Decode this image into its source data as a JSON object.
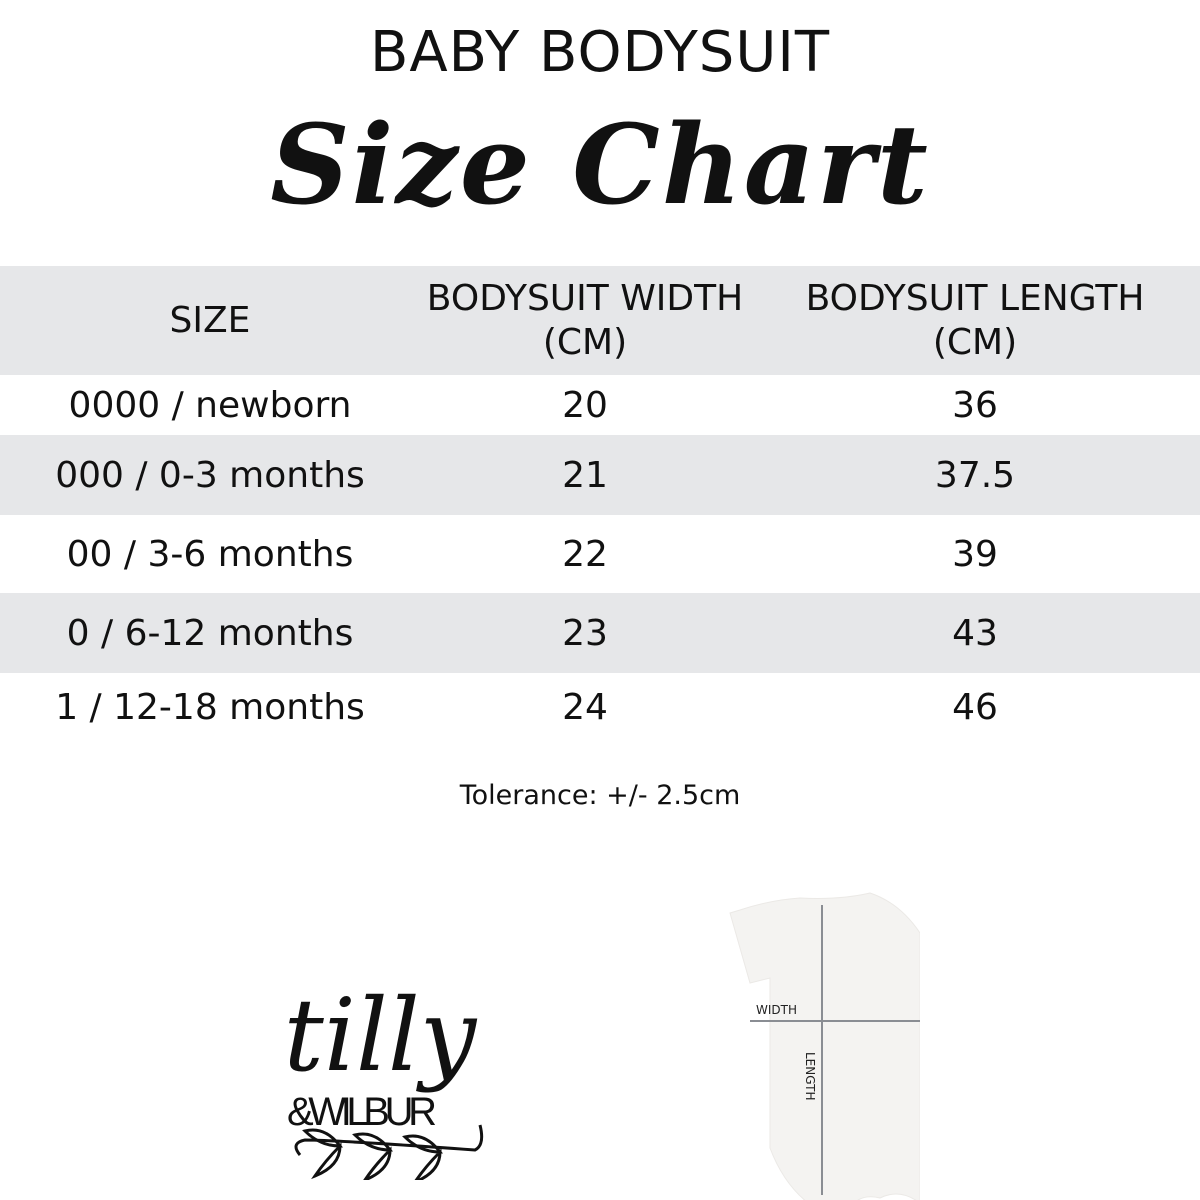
{
  "header": {
    "title": "BABY BODYSUIT",
    "subtitle": "Size Chart"
  },
  "table": {
    "columns": [
      "SIZE",
      "BODYSUIT WIDTH (CM)",
      "BODYSUIT LENGTH (CM)"
    ],
    "rows": [
      [
        "0000 / newborn",
        "20",
        "36"
      ],
      [
        "000 / 0-3 months",
        "21",
        "37.5"
      ],
      [
        "00 / 3-6 months",
        "22",
        "39"
      ],
      [
        "0 / 6-12 months",
        "23",
        "43"
      ],
      [
        "1 / 12-18 months",
        "24",
        "46"
      ]
    ]
  },
  "tolerance": "Tolerance: +/- 2.5cm",
  "logo": {
    "line1": "tilly",
    "line2": "&WILBUR"
  },
  "diagram": {
    "width_label": "WIDTH",
    "length_label": "LENGTH"
  },
  "colors": {
    "row_grey": "#e6e7e9",
    "text": "#111111",
    "measure_line": "#8a8d93"
  }
}
